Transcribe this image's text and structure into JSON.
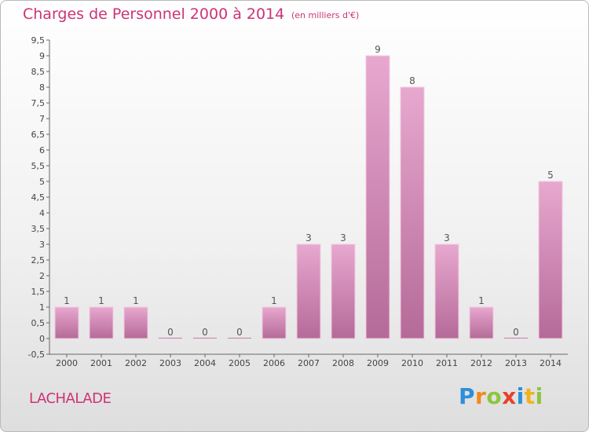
{
  "header": {
    "title": "Charges de Personnel 2000 à 2014",
    "subtitle": "(en milliers d'€)"
  },
  "footer": {
    "commune": "LACHALADE",
    "logo": [
      "P",
      "r",
      "o",
      "x",
      "i",
      "t",
      "i"
    ]
  },
  "chart_data": {
    "type": "bar",
    "title": "Charges de Personnel 2000 à 2014",
    "subtitle": "(en milliers d'€)",
    "categories": [
      "2000",
      "2001",
      "2002",
      "2003",
      "2004",
      "2005",
      "2006",
      "2007",
      "2008",
      "2009",
      "2010",
      "2011",
      "2012",
      "2013",
      "2014"
    ],
    "values": [
      1,
      1,
      1,
      0,
      0,
      0,
      1,
      3,
      3,
      9,
      8,
      3,
      1,
      0,
      5
    ],
    "ylim": [
      -0.5,
      9.5
    ],
    "yticks": [
      "-0,5",
      "0",
      "0,5",
      "1",
      "1,5",
      "2",
      "2,5",
      "3",
      "3,5",
      "4",
      "4,5",
      "5",
      "5,5",
      "6",
      "6,5",
      "7",
      "7,5",
      "8",
      "8,5",
      "9",
      "9,5"
    ],
    "ytick_values": [
      -0.5,
      0,
      0.5,
      1,
      1.5,
      2,
      2.5,
      3,
      3.5,
      4,
      4.5,
      5,
      5.5,
      6,
      6.5,
      7,
      7.5,
      8,
      8.5,
      9,
      9.5
    ],
    "xlabel": "",
    "ylabel": "",
    "grid": false,
    "bar_color": "#dd99c0"
  }
}
